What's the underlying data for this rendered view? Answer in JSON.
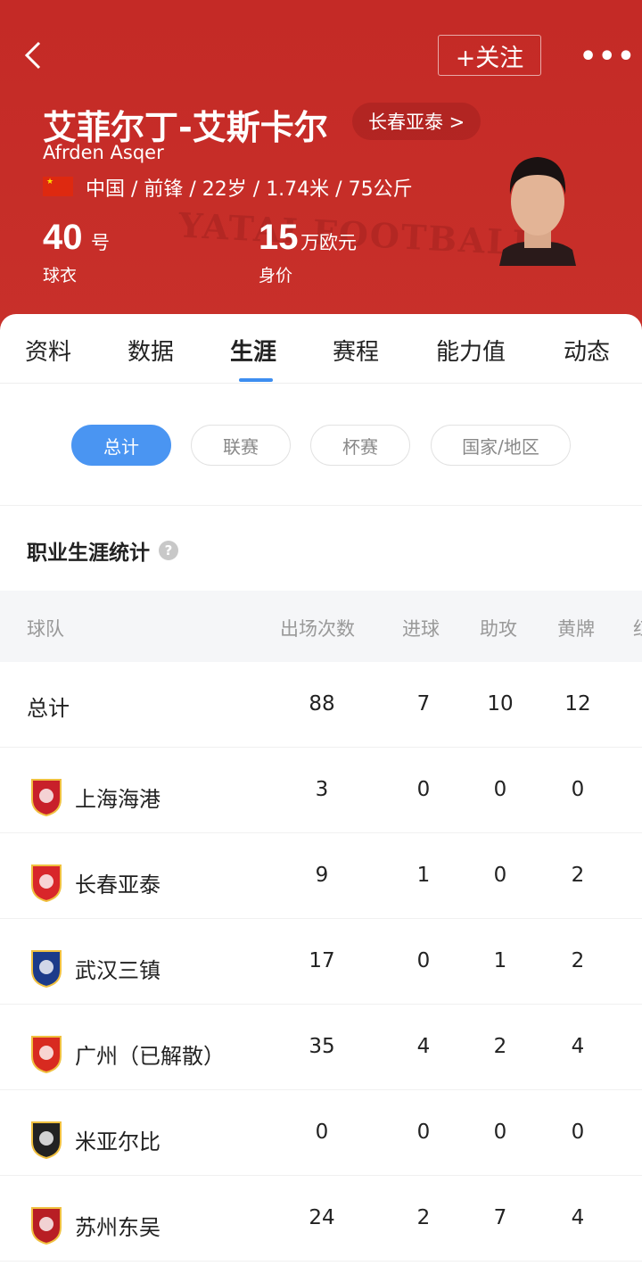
{
  "header": {
    "follow": "+关注",
    "more": "•••",
    "watermark": "YATAI FOOTBALL"
  },
  "player": {
    "name": "艾菲尔丁-艾斯卡尔",
    "team_link": "长春亚泰 >",
    "english_name": "Afrden Asqer",
    "info": "中国 / 前锋 / 22岁 / 1.74米 / 75公斤",
    "shirt_number": "40",
    "shirt_unit": "号",
    "shirt_label": "球衣",
    "value": "15",
    "value_unit": "万欧元",
    "value_label": "身价"
  },
  "tabs": [
    "资料",
    "数据",
    "生涯",
    "赛程",
    "能力值",
    "动态"
  ],
  "active_tab": "生涯",
  "filters": [
    "总计",
    "联赛",
    "杯赛",
    "国家/地区"
  ],
  "section_title": "职业生涯统计",
  "table": {
    "headers": [
      "球队",
      "出场次数",
      "进球",
      "助攻",
      "黄牌",
      "红牌"
    ],
    "rows": [
      {
        "team": "总计",
        "apps": "88",
        "goals": "7",
        "assists": "10",
        "yellow": "12"
      },
      {
        "team": "上海海港",
        "apps": "3",
        "goals": "0",
        "assists": "0",
        "yellow": "0",
        "color": "#c8202a"
      },
      {
        "team": "长春亚泰",
        "apps": "9",
        "goals": "1",
        "assists": "0",
        "yellow": "2",
        "color": "#d8262a"
      },
      {
        "team": "武汉三镇",
        "apps": "17",
        "goals": "0",
        "assists": "1",
        "yellow": "2",
        "color": "#1c3b8a"
      },
      {
        "team": "广州（已解散）",
        "apps": "35",
        "goals": "4",
        "assists": "2",
        "yellow": "4",
        "color": "#d82a20"
      },
      {
        "team": "米亚尔比",
        "apps": "0",
        "goals": "0",
        "assists": "0",
        "yellow": "0",
        "color": "#222222"
      },
      {
        "team": "苏州东吴",
        "apps": "24",
        "goals": "2",
        "assists": "7",
        "yellow": "4",
        "color": "#b81e24"
      }
    ]
  }
}
